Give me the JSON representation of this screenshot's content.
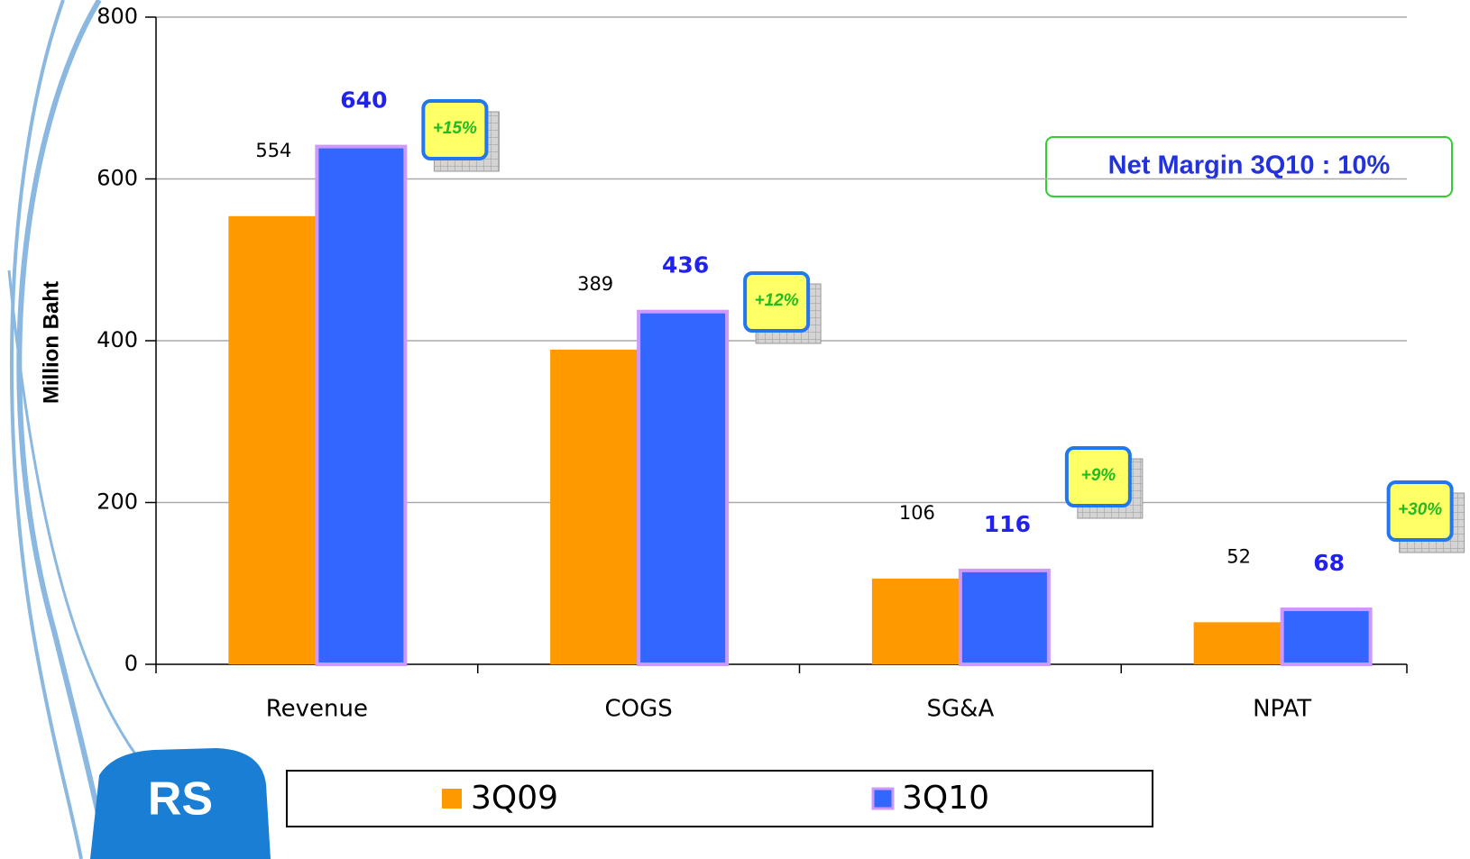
{
  "chart_data": {
    "type": "bar",
    "y_label": "Million Baht",
    "categories": [
      "Revenue",
      "COGS",
      "SG&A",
      "NPAT"
    ],
    "series": [
      {
        "name": "3Q09",
        "color": "#ff9900",
        "values": [
          554,
          389,
          106,
          52
        ]
      },
      {
        "name": "3Q10",
        "color": "#3366ff",
        "values": [
          640,
          436,
          116,
          68
        ]
      }
    ],
    "ylim": [
      0,
      800
    ],
    "yticks": [
      0,
      200,
      400,
      600,
      800
    ],
    "grid": true,
    "annotations": [
      "+15%",
      "+12%",
      "+9%",
      "+30%"
    ],
    "note": "Net Margin 3Q10 : 10%",
    "logo": "RS"
  }
}
